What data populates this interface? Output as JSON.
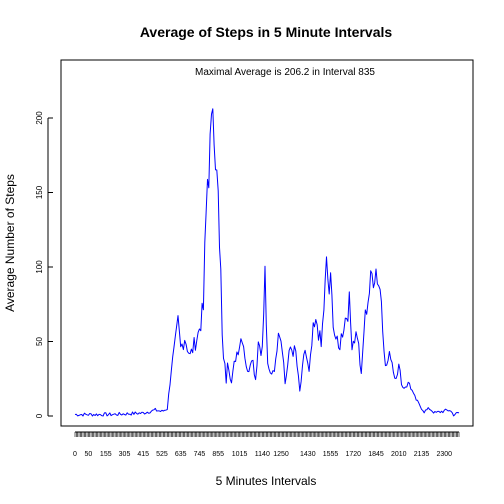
{
  "chart_data": {
    "type": "line",
    "title": "Average of Steps in 5 Minute Intervals",
    "annotation": "Maximal Average is 206.2 in Interval 835",
    "xlabel": "5 Minutes Intervals",
    "ylabel": "Average Number of Steps",
    "ylim": [
      0,
      206.2
    ],
    "yticks": [
      0,
      50,
      100,
      150,
      200
    ],
    "x_tick_labels": [
      "0",
      "50",
      "155",
      "305",
      "415",
      "525",
      "635",
      "745",
      "855",
      "1015",
      "1140",
      "1250",
      "1430",
      "1555",
      "1720",
      "1845",
      "2010",
      "2135",
      "2300"
    ],
    "grid": false,
    "legend": "none",
    "line_color": "#0000ff",
    "x": [
      0,
      215,
      415,
      500,
      525,
      545,
      600,
      615,
      625,
      635,
      650,
      710,
      740,
      800,
      805,
      815,
      830,
      835,
      840,
      850,
      900,
      905,
      910,
      925,
      930,
      945,
      1000,
      1025,
      1045,
      1100,
      1115,
      1125,
      1140,
      1150,
      1200,
      1210,
      1230,
      1240,
      1255,
      1305,
      1325,
      1345,
      1400,
      1420,
      1435,
      1450,
      1505,
      1520,
      1540,
      1550,
      1555,
      1610,
      1625,
      1645,
      1705,
      1715,
      1735,
      1750,
      1800,
      1810,
      1830,
      1845,
      1905,
      1920,
      1940,
      1955,
      2010,
      2025,
      2050,
      2105,
      2125,
      2145,
      2205,
      2225,
      2250,
      2320,
      2335,
      2355
    ],
    "y": [
      1,
      1,
      2,
      4,
      3,
      5,
      32,
      48,
      62,
      45,
      53,
      40,
      55,
      72,
      107,
      160,
      185,
      206.2,
      193,
      180,
      108,
      95,
      50,
      24,
      40,
      22,
      40,
      55,
      28,
      42,
      25,
      50,
      44,
      95,
      32,
      28,
      35,
      62,
      48,
      22,
      46,
      42,
      16,
      45,
      28,
      56,
      62,
      46,
      100,
      83,
      88,
      56,
      44,
      62,
      75,
      50,
      56,
      26,
      58,
      74,
      94,
      99,
      80,
      32,
      42,
      26,
      33,
      19,
      22,
      14,
      8,
      3,
      5,
      2,
      3,
      4,
      1,
      2
    ]
  }
}
